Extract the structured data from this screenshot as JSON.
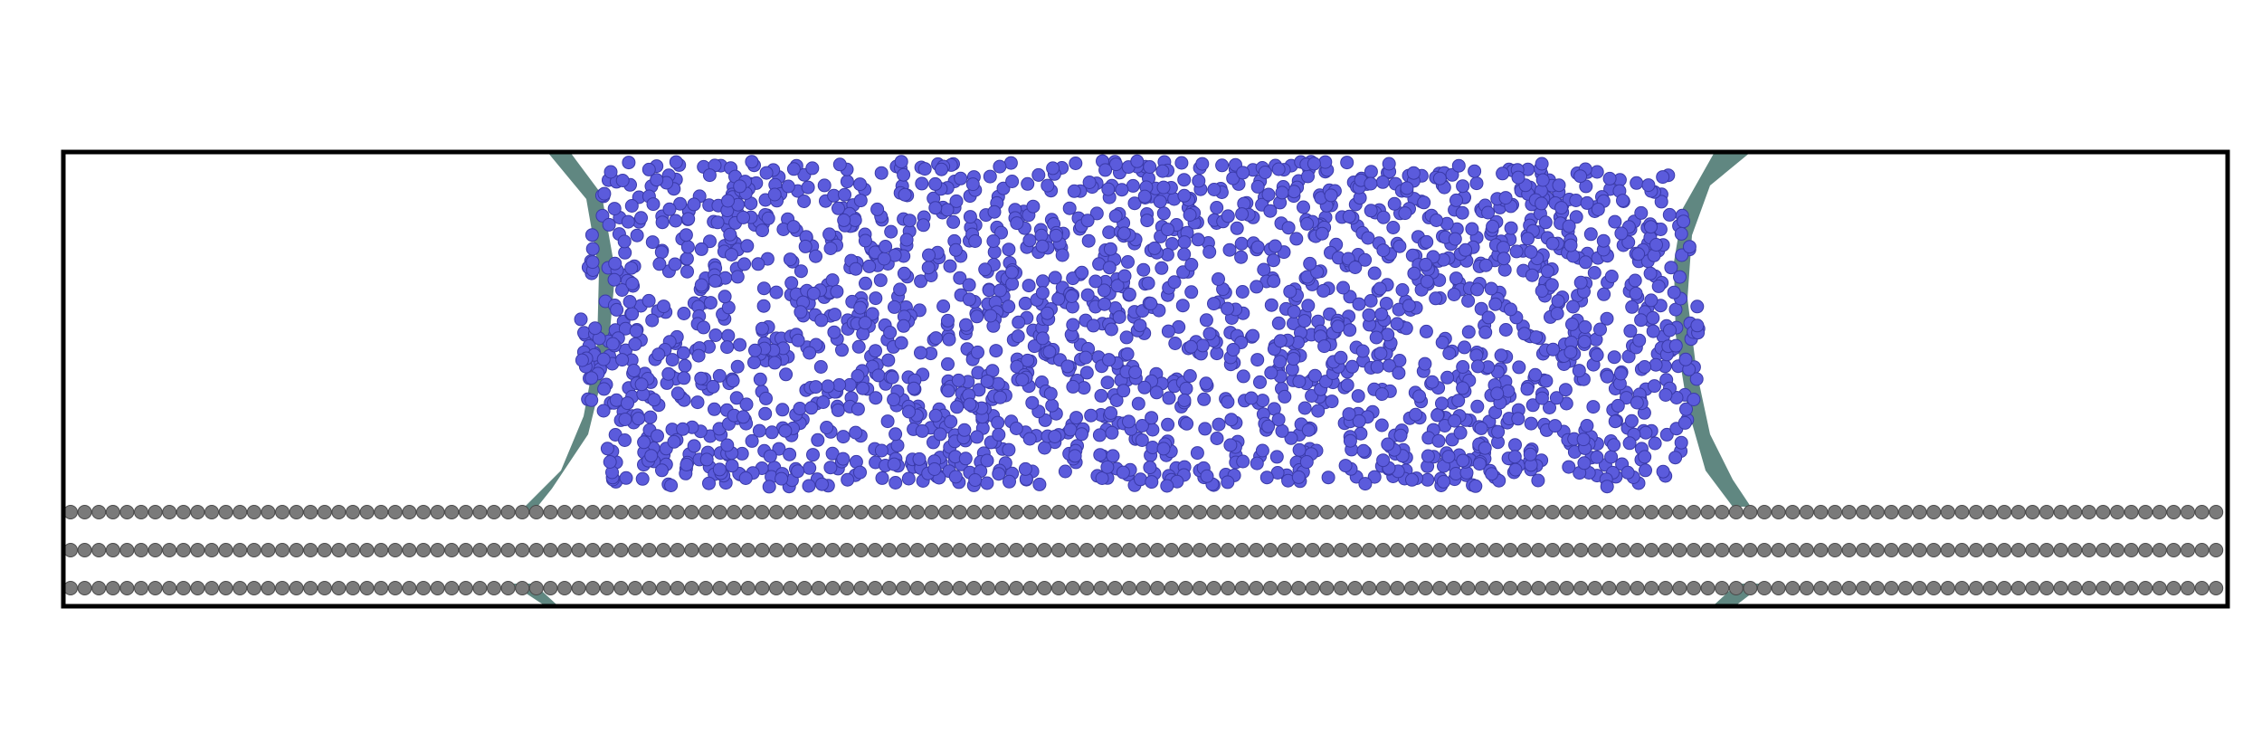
{
  "image": {
    "description_key": "molecular-dynamics-render",
    "colors": {
      "background": "#ffffff",
      "box_outline": "#000000",
      "liquid_atom": "#5b5bdc",
      "liquid_atom_edge": "#3a3aa8",
      "substrate_atom": "#7a7a7a",
      "substrate_atom_edge": "#4a4a4a",
      "interface_surface": "#4f7a73"
    },
    "substrate_layers": 3,
    "liquid_atom_count_estimate": 2200
  }
}
